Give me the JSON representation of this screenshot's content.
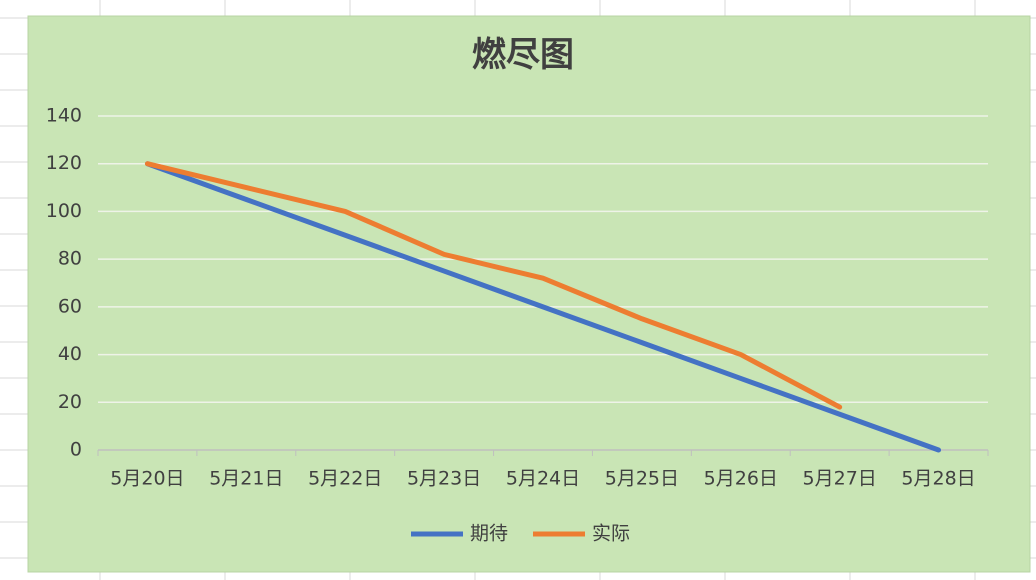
{
  "chart_data": {
    "type": "line",
    "title": "燃尽图",
    "categories": [
      "5月20日",
      "5月21日",
      "5月22日",
      "5月23日",
      "5月24日",
      "5月25日",
      "5月26日",
      "5月27日",
      "5月28日"
    ],
    "series": [
      {
        "name": "期待",
        "color": "#4472c4",
        "values": [
          120,
          105,
          90,
          75,
          60,
          45,
          30,
          15,
          0
        ]
      },
      {
        "name": "实际",
        "color": "#ed7d31",
        "values": [
          120,
          110,
          100,
          82,
          72,
          55,
          40,
          18,
          null
        ]
      }
    ],
    "ylim": [
      0,
      140
    ],
    "yticks": [
      0,
      20,
      40,
      60,
      80,
      100,
      120,
      140
    ],
    "grid": true,
    "legend": "bottom"
  }
}
